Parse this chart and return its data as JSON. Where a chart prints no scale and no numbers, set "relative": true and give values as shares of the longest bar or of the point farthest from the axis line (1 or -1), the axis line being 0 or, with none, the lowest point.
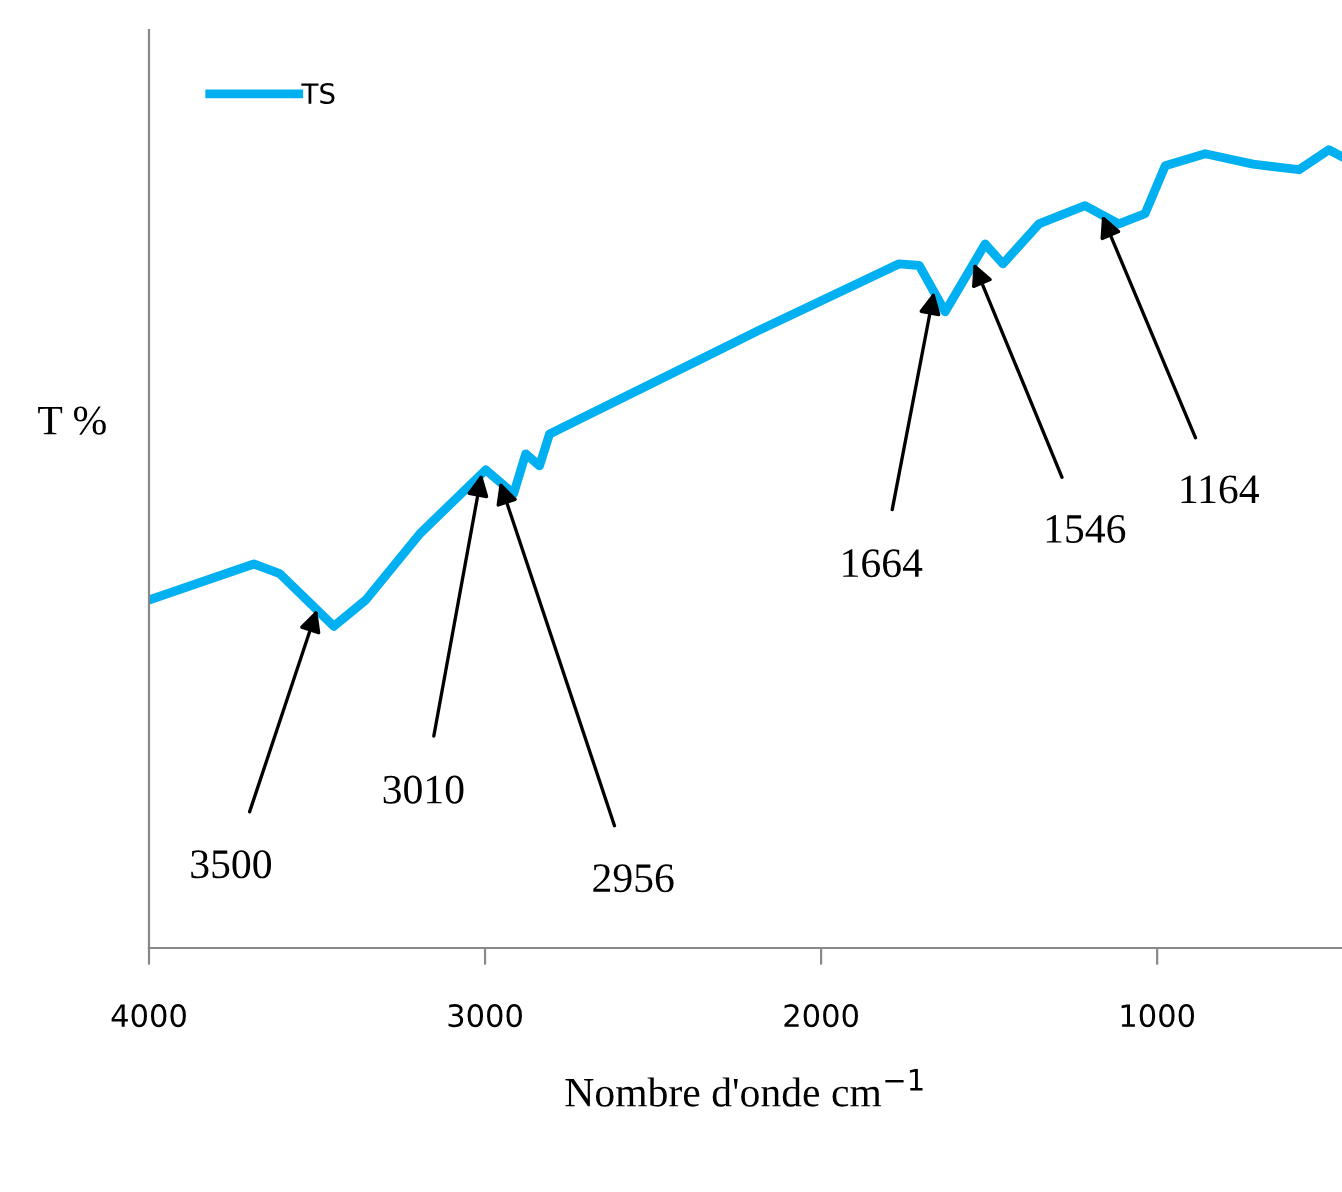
{
  "chart_data": {
    "type": "line",
    "relative": true,
    "xlabel": "Nombre d'onde cm$^{−1}$",
    "ylabel": "T %",
    "x": [
      4000,
      3688,
      3611,
      3450,
      3355,
      3194,
      2998,
      2915,
      2879,
      2838,
      2808,
      2303,
      2184,
      1768,
      1708,
      1631,
      1512,
      1459,
      1352,
      1215,
      1114,
      1036,
      976,
      857,
      715,
      578,
      489,
      453
    ],
    "series": [
      {
        "name": "TS",
        "color": "#00b0f0",
        "values": [
          0.436,
          0.481,
          0.469,
          0.403,
          0.436,
          0.519,
          0.599,
          0.569,
          0.619,
          0.604,
          0.644,
          0.749,
          0.774,
          0.857,
          0.855,
          0.797,
          0.882,
          0.857,
          0.907,
          0.93,
          0.907,
          0.92,
          0.98,
          0.995,
          0.982,
          0.975,
          1.0,
          0.992
        ]
      }
    ],
    "xlim": [
      4000,
      450
    ],
    "xticks": [
      4000,
      3000,
      2000,
      1000
    ],
    "tick_labels": "x",
    "grid": false,
    "legend": "top left",
    "annotations": [
      {
        "text": "3500",
        "x": 3500,
        "y": 0.424
      },
      {
        "text": "3010",
        "x": 3010,
        "y": 0.594
      },
      {
        "text": "2956",
        "x": 2956,
        "y": 0.584
      },
      {
        "text": "1664",
        "x": 1664,
        "y": 0.822
      },
      {
        "text": "1546",
        "x": 1546,
        "y": 0.858
      },
      {
        "text": "1164",
        "x": 1164,
        "y": 0.918
      }
    ]
  }
}
